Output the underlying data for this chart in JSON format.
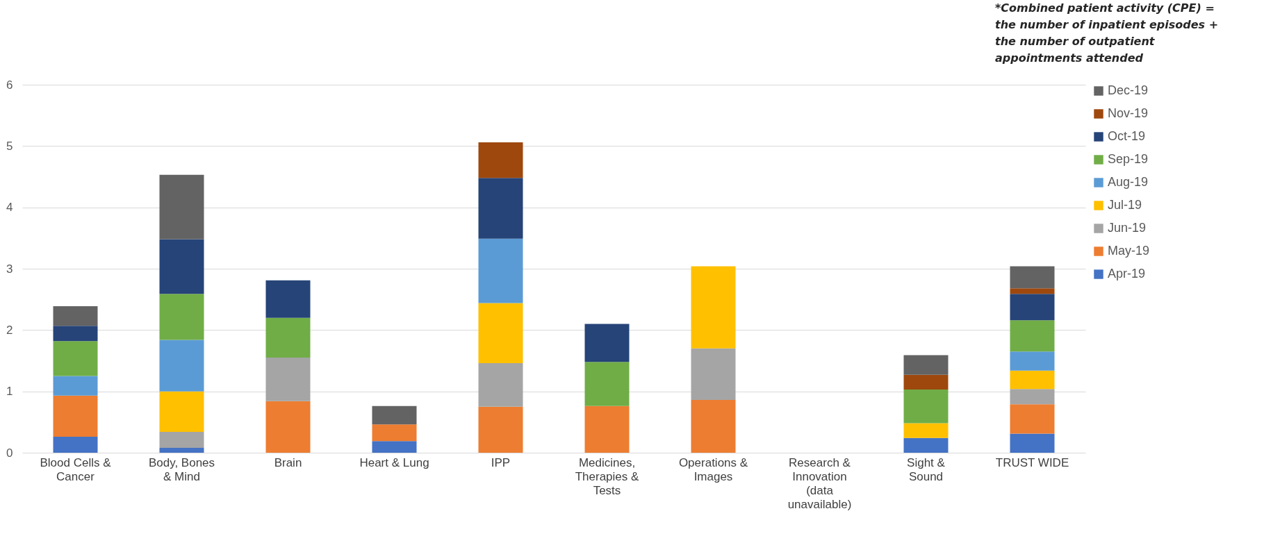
{
  "chart_data": {
    "type": "bar",
    "stacked": true,
    "categories": [
      "Blood Cells &\nCancer",
      "Body, Bones\n& Mind",
      "Brain",
      "Heart & Lung",
      "IPP",
      "Medicines,\nTherapies &\nTests",
      "Operations &\nImages",
      "Research &\nInnovation\n(data\nunavailable)",
      "Sight &\nSound",
      "TRUST WIDE"
    ],
    "series": [
      {
        "name": "Apr-19",
        "color": "#4472c4",
        "values": [
          0.26,
          0.08,
          null,
          0.19,
          null,
          null,
          null,
          null,
          0.24,
          0.31
        ]
      },
      {
        "name": "May-19",
        "color": "#ed7d31",
        "values": [
          0.67,
          null,
          0.84,
          0.27,
          0.75,
          0.76,
          0.86,
          null,
          null,
          0.48
        ]
      },
      {
        "name": "Jun-19",
        "color": "#a5a5a5",
        "values": [
          null,
          0.26,
          0.71,
          null,
          0.71,
          null,
          0.84,
          null,
          null,
          0.25
        ]
      },
      {
        "name": "Jul-19",
        "color": "#ffc000",
        "values": [
          null,
          0.66,
          null,
          null,
          0.98,
          null,
          1.34,
          null,
          0.24,
          0.3
        ]
      },
      {
        "name": "Aug-19",
        "color": "#5b9bd5",
        "values": [
          0.32,
          0.84,
          null,
          null,
          1.05,
          null,
          null,
          null,
          null,
          0.31
        ]
      },
      {
        "name": "Sep-19",
        "color": "#70ad47",
        "values": [
          0.57,
          0.75,
          0.65,
          null,
          null,
          0.72,
          null,
          null,
          0.55,
          0.51
        ]
      },
      {
        "name": "Oct-19",
        "color": "#264478",
        "values": [
          0.25,
          0.89,
          0.61,
          null,
          0.99,
          0.62,
          null,
          null,
          null,
          0.43
        ]
      },
      {
        "name": "Nov-19",
        "color": "#9e480e",
        "values": [
          null,
          null,
          null,
          null,
          0.58,
          null,
          null,
          null,
          0.24,
          0.09
        ]
      },
      {
        "name": "Dec-19",
        "color": "#636363",
        "values": [
          0.32,
          1.05,
          null,
          0.3,
          null,
          null,
          null,
          null,
          0.32,
          0.36
        ]
      }
    ],
    "ylim": [
      0,
      6
    ],
    "yticks": [
      0,
      1,
      2,
      3,
      4,
      5,
      6
    ],
    "grid": "y",
    "legend": "right",
    "annotations": [
      "*Combined patient activity (CPE) =\nthe number of inpatient episodes +\nthe number of outpatient\nappointments attended"
    ]
  }
}
